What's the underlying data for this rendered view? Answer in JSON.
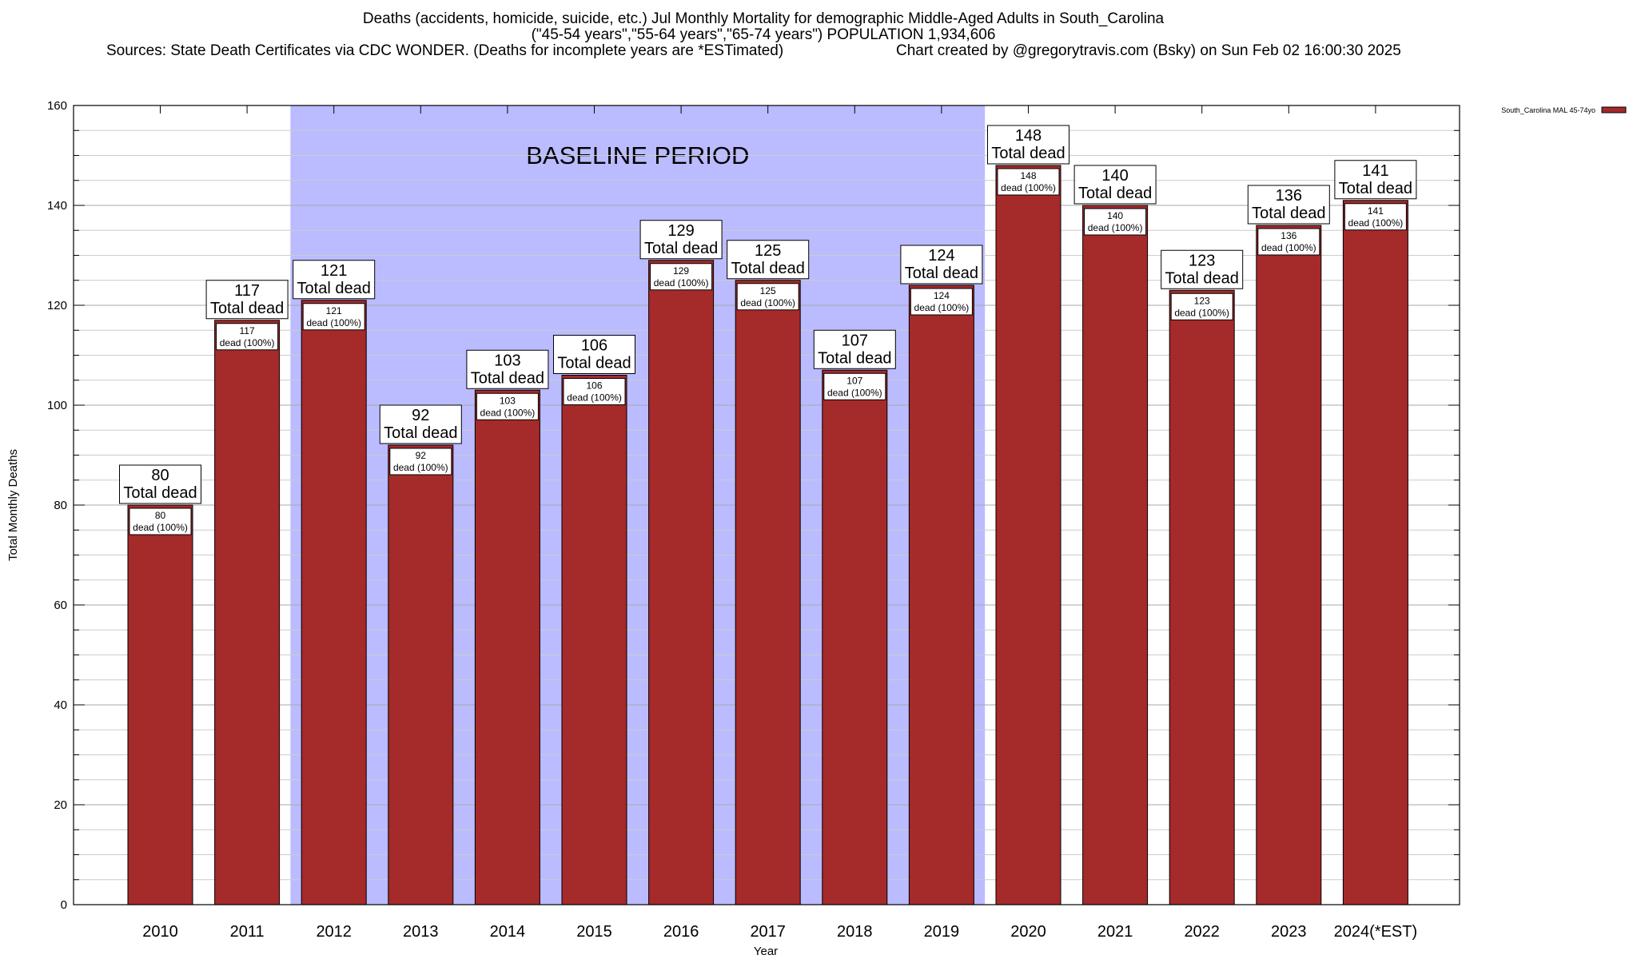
{
  "title": {
    "line1": "Deaths (accidents, homicide, suicide, etc.) Jul Monthly Mortality for demographic Middle-Aged Adults in South_Carolina",
    "line2": "(\"45-54 years\",\"55-64 years\",\"65-74 years\") POPULATION 1,934,606",
    "line3": "Sources: State Death Certificates via CDC WONDER. (Deaths for incomplete years are *ESTimated)",
    "line4": "Chart created by @gregorytravis.com (Bsky) on Sun Feb 02 16:00:30 2025"
  },
  "chart_data": {
    "type": "bar",
    "categories": [
      "2010",
      "2011",
      "2012",
      "2013",
      "2014",
      "2015",
      "2016",
      "2017",
      "2018",
      "2019",
      "2020",
      "2021",
      "2022",
      "2023",
      "2024(*EST)"
    ],
    "series": [
      {
        "name": "South_Carolina MAL 45-74yo",
        "values": [
          80,
          117,
          121,
          92,
          103,
          106,
          129,
          125,
          107,
          124,
          148,
          140,
          123,
          136,
          141
        ],
        "color": "#a52a2a"
      }
    ],
    "top_label_suffix": "Total dead",
    "inner_label_suffix": "dead (100%)",
    "xlabel": "Year",
    "ylabel": "Total Monthly Deaths",
    "ylim": [
      0,
      160
    ],
    "yticks": [
      0,
      20,
      40,
      60,
      80,
      100,
      120,
      140,
      160
    ],
    "grid": true,
    "legend_position": "top-right",
    "baseline": {
      "label": "BASELINE PERIOD",
      "from": "2012",
      "to": "2019",
      "color": "#bbbbff"
    }
  }
}
